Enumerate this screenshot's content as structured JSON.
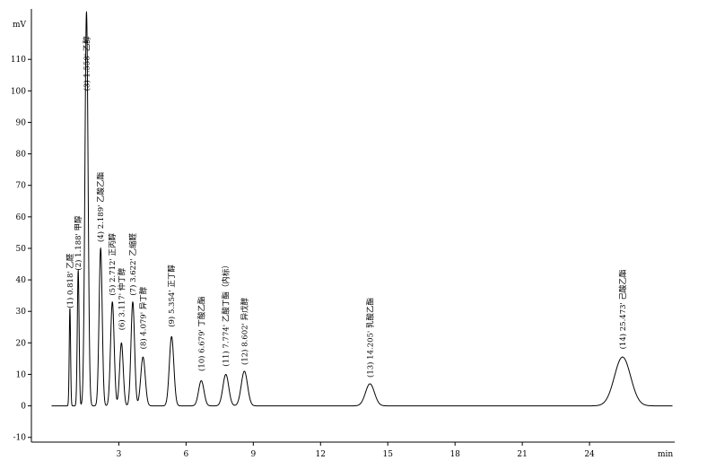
{
  "chart_data": {
    "type": "line",
    "title": "",
    "ylabel_unit": "mV",
    "xlabel_unit": "min",
    "xlim": [
      -0.9,
      27.8
    ],
    "ylim": [
      -11.5,
      126
    ],
    "x_ticks": [
      {
        "value": 3,
        "label": "3"
      },
      {
        "value": 6,
        "label": "6"
      },
      {
        "value": 9,
        "label": "9"
      },
      {
        "value": 12,
        "label": "12"
      },
      {
        "value": 15,
        "label": "15"
      },
      {
        "value": 18,
        "label": "18"
      },
      {
        "value": 21,
        "label": "21"
      },
      {
        "value": 24,
        "label": "24"
      }
    ],
    "y_ticks": [
      {
        "value": -10,
        "label": "-10"
      },
      {
        "value": 0,
        "label": "0"
      },
      {
        "value": 10,
        "label": "10"
      },
      {
        "value": 20,
        "label": "20"
      },
      {
        "value": 30,
        "label": "30"
      },
      {
        "value": 40,
        "label": "40"
      },
      {
        "value": 50,
        "label": "50"
      },
      {
        "value": 60,
        "label": "60"
      },
      {
        "value": 70,
        "label": "70"
      },
      {
        "value": 80,
        "label": "80"
      },
      {
        "value": 90,
        "label": "90"
      },
      {
        "value": 100,
        "label": "100"
      },
      {
        "value": 110,
        "label": "110"
      }
    ],
    "peaks": [
      {
        "rt": 0.818,
        "height": 31,
        "width": 0.03,
        "label": "(1) 0.818' 乙醛",
        "label_bottom_y": 31
      },
      {
        "rt": 1.188,
        "height": 43,
        "width": 0.04,
        "label": "(2) 1.188' 甲醇",
        "label_bottom_y": 43
      },
      {
        "rt": 1.558,
        "height": 125,
        "width": 0.07,
        "label": "(3) 1.558' 乙醇",
        "label_bottom_y": 100
      },
      {
        "rt": 2.189,
        "height": 50,
        "width": 0.07,
        "label": "(4) 2.189' 乙酸乙酯",
        "label_bottom_y": 52
      },
      {
        "rt": 2.712,
        "height": 33,
        "width": 0.08,
        "label": "(5) 2.712' 正丙醇",
        "label_bottom_y": 35
      },
      {
        "rt": 3.117,
        "height": 20,
        "width": 0.08,
        "label": "(6) 3.117' 仲丁醇",
        "label_bottom_y": 24
      },
      {
        "rt": 3.622,
        "height": 33,
        "width": 0.08,
        "label": "(7) 3.622' 乙缩醛",
        "label_bottom_y": 35
      },
      {
        "rt": 4.079,
        "height": 15.5,
        "width": 0.1,
        "label": "(8) 4.079' 异丁醇",
        "label_bottom_y": 18
      },
      {
        "rt": 5.354,
        "height": 22,
        "width": 0.1,
        "label": "(9) 5.354' 正丁醇",
        "label_bottom_y": 25
      },
      {
        "rt": 6.679,
        "height": 8,
        "width": 0.12,
        "label": "(10) 6.679' 丁酸乙酯",
        "label_bottom_y": 11
      },
      {
        "rt": 7.774,
        "height": 10,
        "width": 0.13,
        "label": "(11) 7.774' 乙酸丁酯（内标）",
        "label_bottom_y": 12.5
      },
      {
        "rt": 8.602,
        "height": 11,
        "width": 0.14,
        "label": "(12) 8.602' 异戊醇",
        "label_bottom_y": 13
      },
      {
        "rt": 14.205,
        "height": 7,
        "width": 0.2,
        "label": "(13) 14.205' 乳酸乙酯",
        "label_bottom_y": 9
      },
      {
        "rt": 25.473,
        "height": 15.5,
        "width": 0.36,
        "label": "(14) 25.473' 己酸乙酯",
        "label_bottom_y": 18
      }
    ],
    "baseline": 0,
    "colors": {
      "trace": "#000000",
      "axis": "#000000",
      "background": "#ffffff"
    }
  }
}
